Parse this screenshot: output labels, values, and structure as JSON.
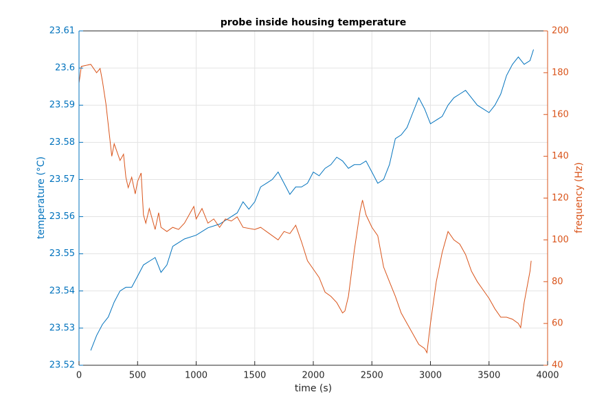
{
  "chart_data": {
    "type": "line",
    "title": "probe inside housing temperature",
    "xlabel": "time (s)",
    "ylabel": "temperature (°C)",
    "y2label": "frequency (Hz)",
    "xlim": [
      0,
      4000
    ],
    "xticks": [
      0,
      500,
      1000,
      1500,
      2000,
      2500,
      3000,
      3500,
      4000
    ],
    "ylim": [
      23.52,
      23.61
    ],
    "yticks": [
      23.52,
      23.53,
      23.54,
      23.55,
      23.56,
      23.57,
      23.58,
      23.59,
      23.6,
      23.61
    ],
    "y2lim": [
      40,
      200
    ],
    "y2ticks": [
      40,
      60,
      80,
      100,
      120,
      140,
      160,
      180,
      200
    ],
    "grid": true,
    "ycolor": "#0072bd",
    "y2color": "#d95319",
    "series": [
      {
        "color": "#0072bd",
        "axis": "y",
        "x": [
          100,
          150,
          200,
          250,
          300,
          350,
          400,
          450,
          500,
          550,
          600,
          650,
          700,
          750,
          800,
          850,
          900,
          1000,
          1100,
          1200,
          1250,
          1300,
          1350,
          1400,
          1450,
          1500,
          1550,
          1600,
          1650,
          1700,
          1750,
          1800,
          1850,
          1900,
          1950,
          2000,
          2050,
          2100,
          2150,
          2200,
          2250,
          2300,
          2350,
          2400,
          2450,
          2500,
          2550,
          2600,
          2650,
          2700,
          2750,
          2800,
          2850,
          2900,
          2950,
          3000,
          3050,
          3100,
          3150,
          3200,
          3250,
          3300,
          3350,
          3400,
          3450,
          3500,
          3550,
          3600,
          3650,
          3700,
          3750,
          3800,
          3850,
          3880
        ],
        "values": [
          23.524,
          23.528,
          23.531,
          23.533,
          23.537,
          23.54,
          23.541,
          23.541,
          23.544,
          23.547,
          23.548,
          23.549,
          23.545,
          23.547,
          23.552,
          23.553,
          23.554,
          23.555,
          23.557,
          23.558,
          23.559,
          23.56,
          23.561,
          23.564,
          23.562,
          23.564,
          23.568,
          23.569,
          23.57,
          23.572,
          23.569,
          23.566,
          23.568,
          23.568,
          23.569,
          23.572,
          23.571,
          23.573,
          23.574,
          23.576,
          23.575,
          23.573,
          23.574,
          23.574,
          23.575,
          23.572,
          23.569,
          23.57,
          23.574,
          23.581,
          23.582,
          23.584,
          23.588,
          23.592,
          23.589,
          23.585,
          23.586,
          23.587,
          23.59,
          23.592,
          23.593,
          23.594,
          23.592,
          23.59,
          23.589,
          23.588,
          23.59,
          23.593,
          23.598,
          23.601,
          23.603,
          23.601,
          23.602,
          23.605
        ]
      },
      {
        "color": "#d95319",
        "axis": "y2",
        "x": [
          0,
          20,
          100,
          150,
          180,
          200,
          230,
          260,
          280,
          300,
          350,
          380,
          400,
          420,
          450,
          480,
          500,
          530,
          550,
          570,
          600,
          650,
          680,
          700,
          750,
          800,
          850,
          900,
          950,
          980,
          1000,
          1050,
          1100,
          1150,
          1200,
          1250,
          1300,
          1350,
          1400,
          1500,
          1550,
          1600,
          1650,
          1700,
          1750,
          1800,
          1850,
          1900,
          1950,
          2000,
          2050,
          2100,
          2150,
          2200,
          2250,
          2270,
          2300,
          2350,
          2400,
          2420,
          2450,
          2500,
          2550,
          2600,
          2650,
          2700,
          2750,
          2800,
          2850,
          2900,
          2950,
          2970,
          3000,
          3050,
          3100,
          3150,
          3200,
          3250,
          3300,
          3350,
          3400,
          3450,
          3500,
          3550,
          3600,
          3650,
          3700,
          3750,
          3770,
          3800,
          3850,
          3860
        ],
        "values": [
          175,
          183,
          184,
          180,
          182,
          176,
          165,
          150,
          140,
          146,
          138,
          141,
          130,
          125,
          130,
          122,
          128,
          132,
          112,
          108,
          115,
          105,
          113,
          106,
          104,
          106,
          105,
          108,
          113,
          116,
          110,
          115,
          108,
          110,
          106,
          110,
          109,
          111,
          106,
          105,
          106,
          104,
          102,
          100,
          104,
          103,
          107,
          99,
          90,
          86,
          82,
          75,
          73,
          70,
          65,
          66,
          73,
          95,
          114,
          119,
          112,
          106,
          102,
          87,
          80,
          73,
          65,
          60,
          55,
          50,
          48,
          46,
          60,
          80,
          94,
          104,
          100,
          98,
          93,
          85,
          80,
          76,
          72,
          67,
          63,
          63,
          62,
          60,
          58,
          70,
          85,
          90
        ]
      }
    ]
  }
}
